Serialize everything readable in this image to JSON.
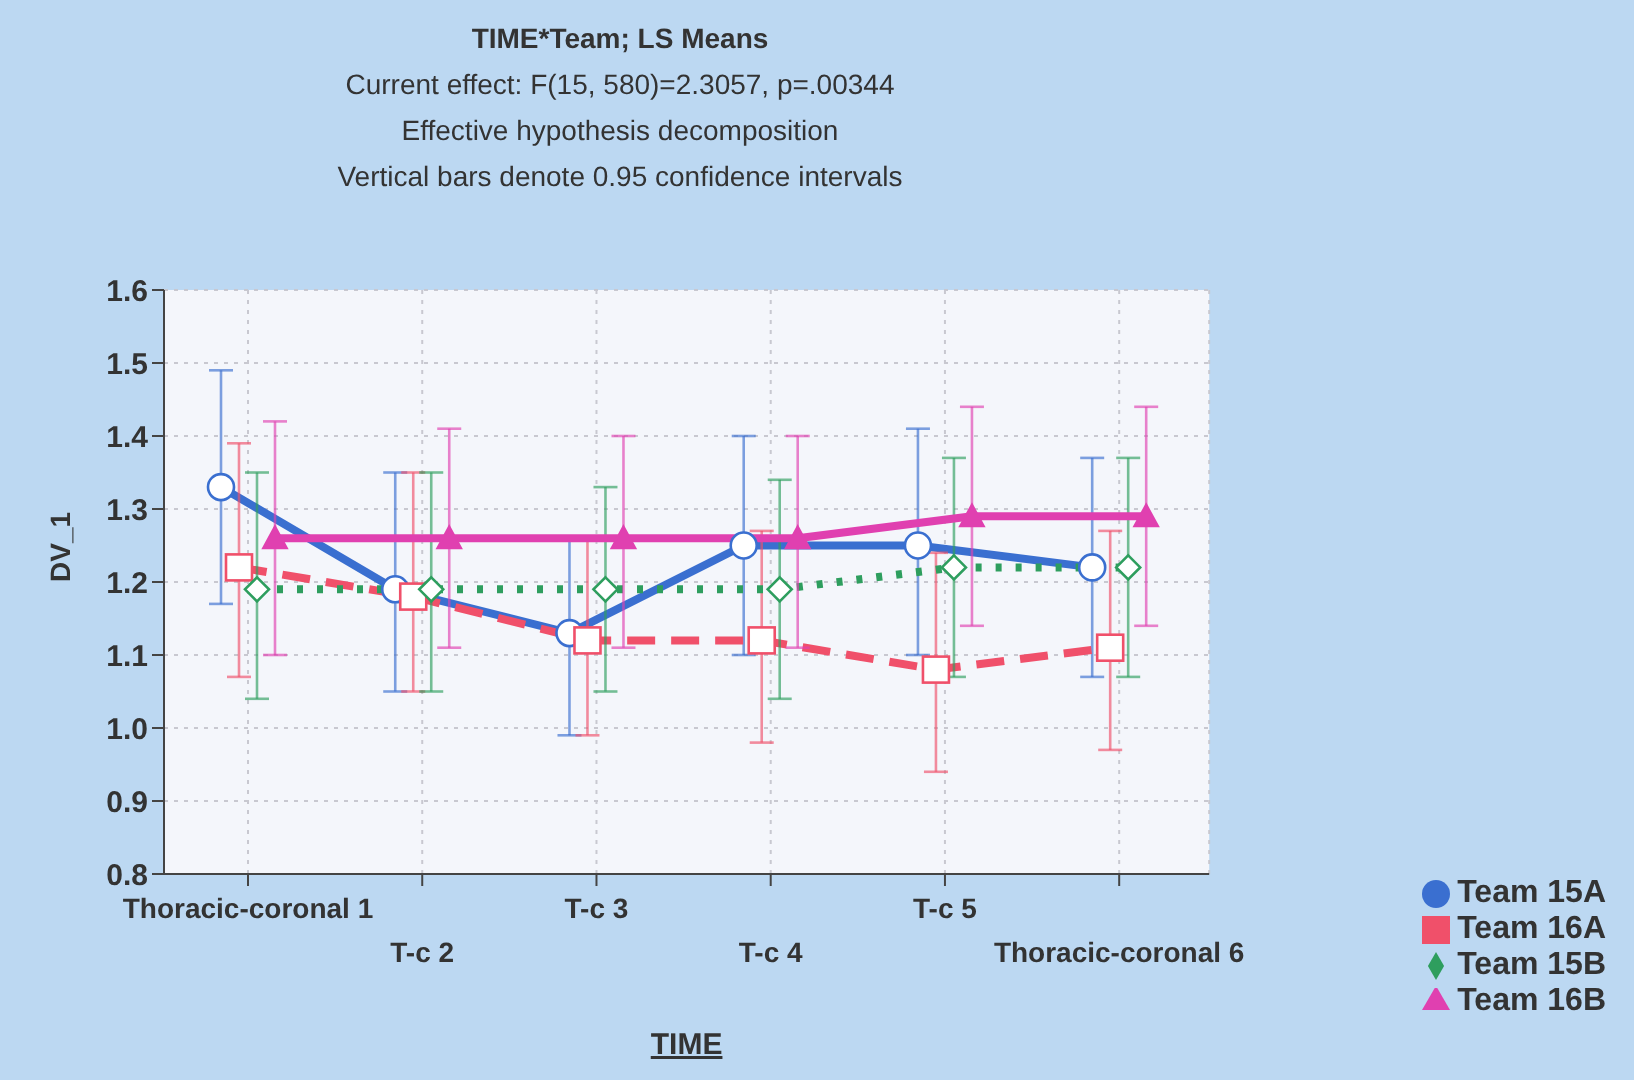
{
  "chart_data": {
    "type": "line",
    "title": "TIME*Team; LS Means",
    "subtitle": "Current effect: F(15, 580)=2.3057, p=.00344",
    "annotations": [
      "Effective hypothesis decomposition",
      "Vertical bars denote 0.95 confidence intervals"
    ],
    "xlabel": "TIME",
    "ylabel": "DV_1",
    "categories": [
      "Thoracic-coronal 1",
      "T-c 2",
      "T-c 3",
      "T-c 4",
      "T-c 5",
      "Thoracic-coronal 6"
    ],
    "series": [
      {
        "name": "Team 15A",
        "color": "#3a6fd0",
        "marker": "circle",
        "line_style": "solid",
        "values": [
          1.33,
          1.19,
          1.13,
          1.25,
          1.25,
          1.22
        ],
        "errors": [
          [
            1.17,
            1.49
          ],
          [
            1.05,
            1.35
          ],
          [
            0.99,
            1.26
          ],
          [
            1.1,
            1.4
          ],
          [
            1.1,
            1.41
          ],
          [
            1.07,
            1.37
          ]
        ]
      },
      {
        "name": "Team 16A",
        "color": "#f0506a",
        "marker": "square",
        "line_style": "dashed",
        "values": [
          1.22,
          1.18,
          1.12,
          1.12,
          1.08,
          1.11
        ],
        "errors": [
          [
            1.07,
            1.39
          ],
          [
            1.05,
            1.35
          ],
          [
            0.99,
            1.26
          ],
          [
            0.98,
            1.27
          ],
          [
            0.94,
            1.24
          ],
          [
            0.97,
            1.27
          ]
        ]
      },
      {
        "name": "Team 15B",
        "color": "#2e9e5e",
        "marker": "diamond",
        "line_style": "dotted",
        "values": [
          1.19,
          1.19,
          1.19,
          1.19,
          1.22,
          1.22
        ],
        "errors": [
          [
            1.04,
            1.35
          ],
          [
            1.05,
            1.35
          ],
          [
            1.05,
            1.33
          ],
          [
            1.04,
            1.34
          ],
          [
            1.07,
            1.37
          ],
          [
            1.07,
            1.37
          ]
        ]
      },
      {
        "name": "Team 16B",
        "color": "#e040b0",
        "marker": "triangle",
        "line_style": "solid",
        "values": [
          1.26,
          1.26,
          1.26,
          1.26,
          1.29,
          1.29
        ],
        "errors": [
          [
            1.1,
            1.42
          ],
          [
            1.11,
            1.41
          ],
          [
            1.11,
            1.4
          ],
          [
            1.11,
            1.4
          ],
          [
            1.14,
            1.44
          ],
          [
            1.14,
            1.44
          ]
        ]
      }
    ],
    "ylim": [
      0.8,
      1.6
    ],
    "yticks": [
      0.8,
      0.9,
      {
        "value": 1,
        "label": "1.0"
      },
      1.1,
      1.2,
      1.3,
      1.4,
      1.5,
      1.6
    ],
    "grid": true,
    "legend": "bottom right"
  }
}
